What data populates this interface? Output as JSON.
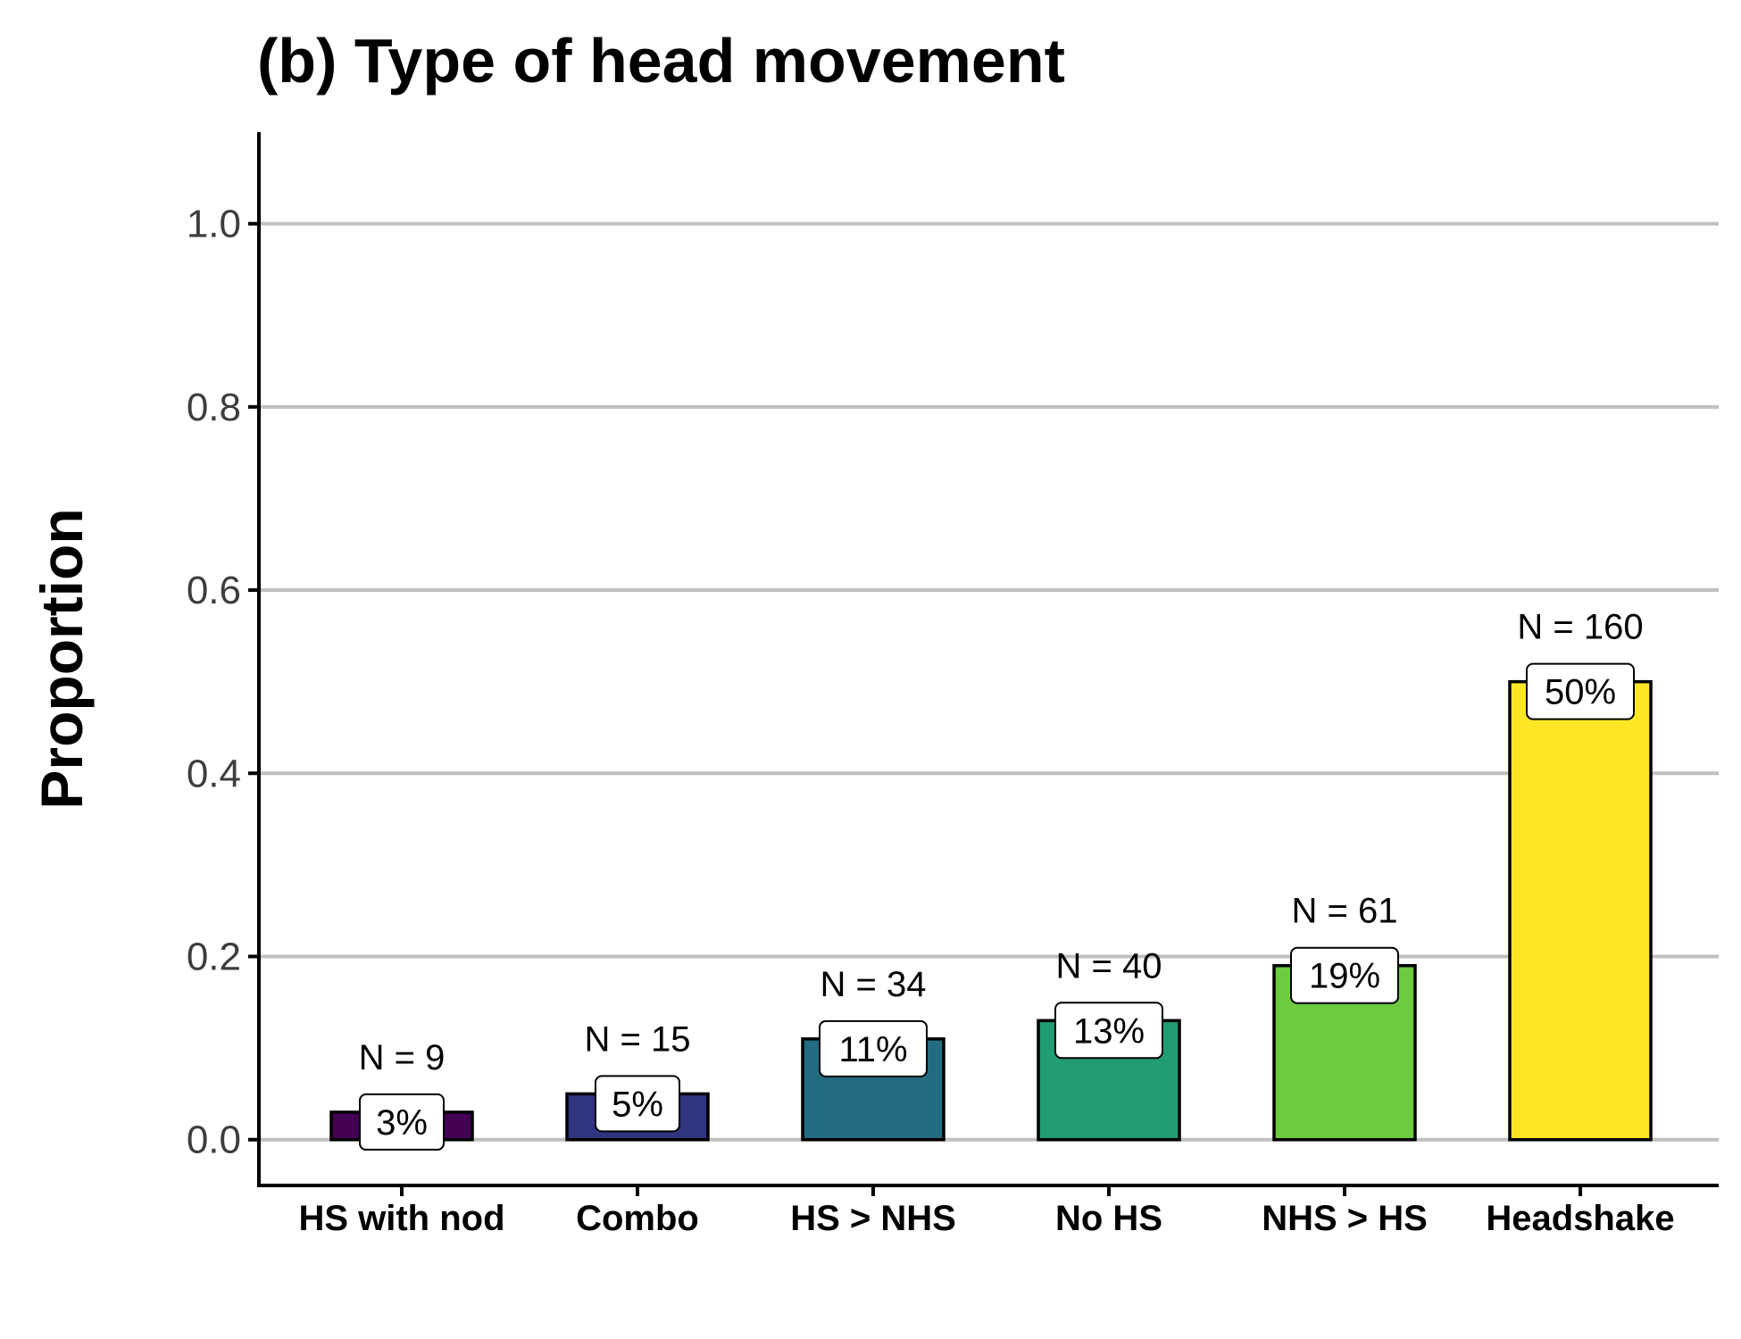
{
  "chart_data": {
    "type": "bar",
    "title": "(b) Type of head movement",
    "xlabel": "",
    "ylabel": "Proportion",
    "ylim": [
      -0.05,
      1.1
    ],
    "yticks": [
      "0.0",
      "0.2",
      "0.4",
      "0.6",
      "0.8",
      "1.0"
    ],
    "ytick_values": [
      0.0,
      0.2,
      0.4,
      0.6,
      0.8,
      1.0
    ],
    "grid": "horizontal",
    "legend": "none",
    "categories": [
      "HS with nod",
      "Combo",
      "HS > NHS",
      "No HS",
      "NHS > HS",
      "Headshake"
    ],
    "values": [
      0.03,
      0.05,
      0.11,
      0.13,
      0.19,
      0.5
    ],
    "counts": [
      "N = 9",
      "N = 15",
      "N = 34",
      "N = 40",
      "N = 61",
      "N = 160"
    ],
    "percent_labels": [
      "3%",
      "5%",
      "11%",
      "13%",
      "19%",
      "50%"
    ],
    "colors": [
      "#440154",
      "#31347f",
      "#236b80",
      "#229c72",
      "#6ecb3f",
      "#fde725"
    ],
    "bar_outline_color": "#000000",
    "grid_color": "#c0c0c0"
  }
}
